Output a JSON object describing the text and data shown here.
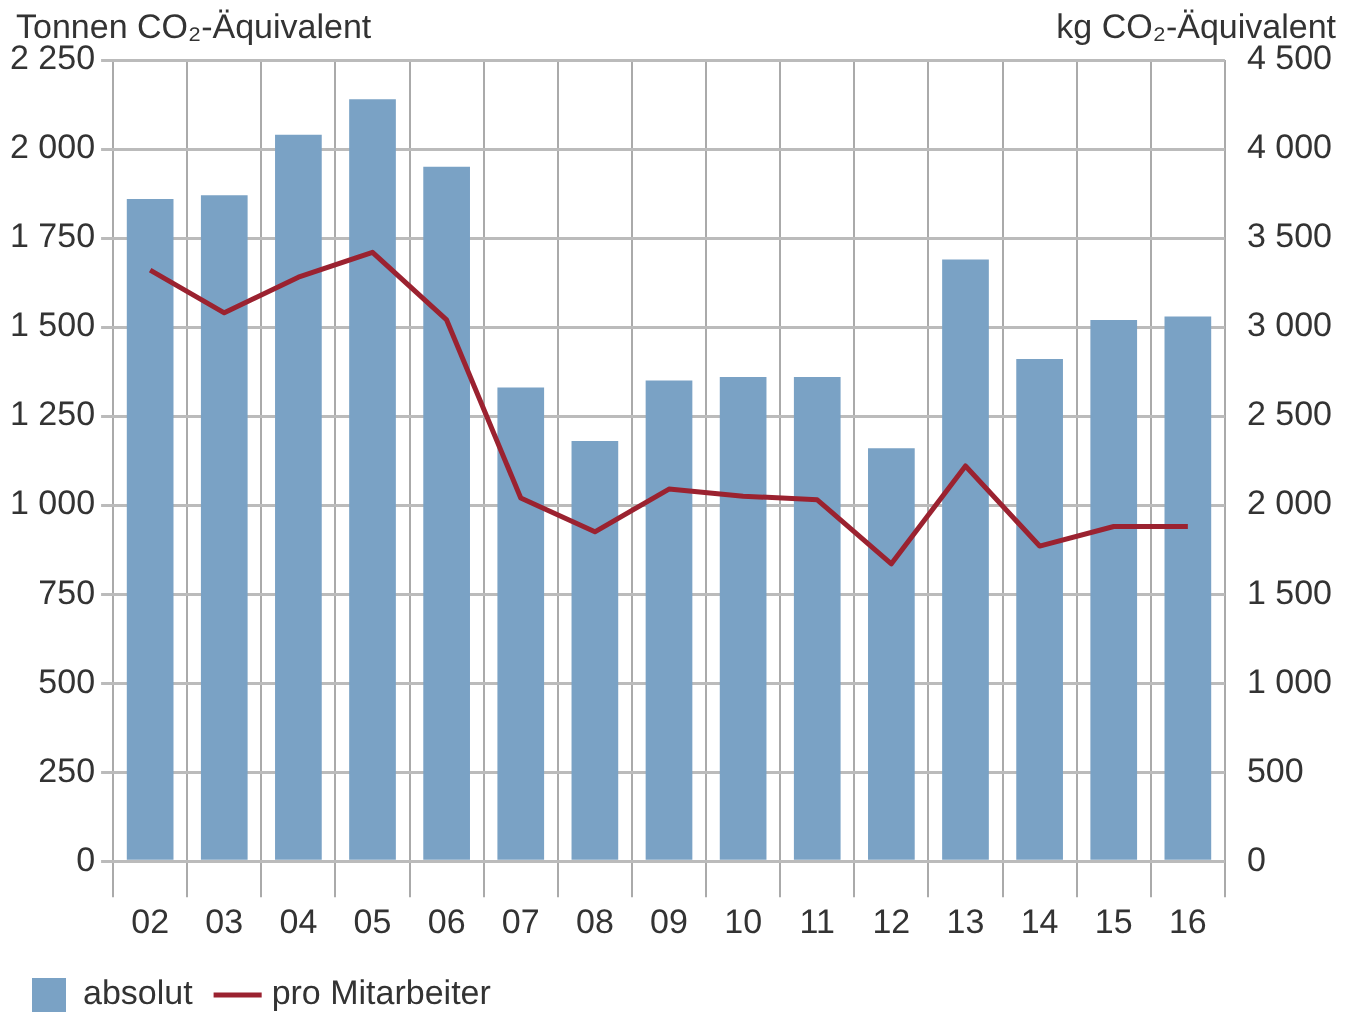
{
  "chart_data": {
    "type": "bar",
    "ylabel": "Tonnen CO₂-Äquivalent",
    "y2label": "kg CO₂-Äquivalent",
    "categories": [
      "02",
      "03",
      "04",
      "05",
      "06",
      "07",
      "08",
      "09",
      "10",
      "11",
      "12",
      "13",
      "14",
      "15",
      "16"
    ],
    "series": [
      {
        "name": "absolut",
        "color": "#7aa2c5",
        "values": [
          1860,
          1870,
          2040,
          2140,
          1950,
          1330,
          1180,
          1350,
          1360,
          1360,
          1160,
          1690,
          1410,
          1520,
          1530
        ]
      },
      {
        "name": "pro Mitarbeiter",
        "type": "line",
        "axis": "y2",
        "color": "#9b2230",
        "values": [
          3320,
          3080,
          3280,
          3420,
          3040,
          2040,
          1850,
          2090,
          2050,
          2030,
          1670,
          2220,
          1770,
          1880,
          1880
        ]
      }
    ],
    "ylim": [
      0,
      2250
    ],
    "yticks": [
      0,
      250,
      500,
      750,
      {
        "value": 1000,
        "label": "1 000"
      },
      {
        "value": 1250,
        "label": "1 250"
      },
      {
        "value": 1500,
        "label": "1 500"
      },
      {
        "value": 1750,
        "label": "1 750"
      },
      {
        "value": 2000,
        "label": "2 000"
      },
      {
        "value": 2250,
        "label": "2 250"
      }
    ],
    "y2lim": [
      0,
      4500
    ],
    "y2ticks": [
      0,
      500,
      {
        "value": 1000,
        "label": "1 000"
      },
      {
        "value": 1500,
        "label": "1 500"
      },
      {
        "value": 2000,
        "label": "2 000"
      },
      {
        "value": 2500,
        "label": "2 500"
      },
      {
        "value": 3000,
        "label": "3 000"
      },
      {
        "value": 3500,
        "label": "3 500"
      },
      {
        "value": 4000,
        "label": "4 000"
      },
      {
        "value": 4500,
        "label": "4 500"
      }
    ],
    "grid": true,
    "legend": "bottom left",
    "marker": "none",
    "line_style": "solid"
  }
}
